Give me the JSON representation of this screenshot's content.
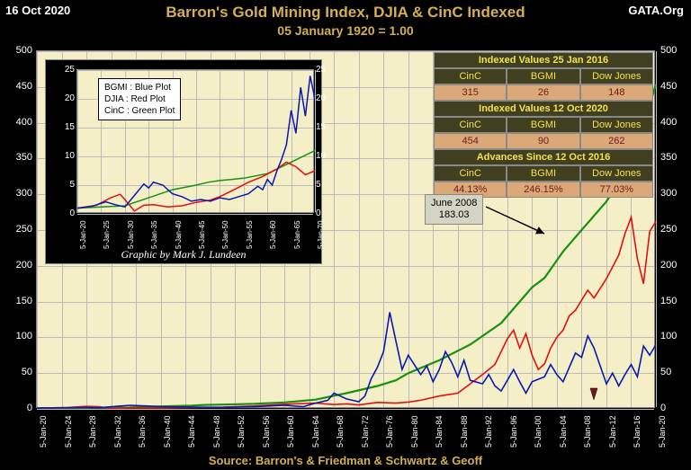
{
  "meta": {
    "date": "16 Oct 2020",
    "org": "GATA.Org",
    "title": "Barron's Gold Mining Index, DJIA & CinC Indexed",
    "subtitle": "05 January 1920 = 1.00",
    "source": "Source: Barron's & Friedman & Schwartz & Geoff",
    "credit": "Graphic by Mark J. Lundeen"
  },
  "main_chart": {
    "type": "line",
    "bg": "#f5efc8",
    "ylim": [
      0,
      500
    ],
    "yticks": [
      0,
      50,
      100,
      150,
      200,
      250,
      300,
      350,
      400,
      450,
      500
    ],
    "xticks": [
      "5-Jan-20",
      "5-Jan-24",
      "5-Jan-28",
      "5-Jan-32",
      "5-Jan-36",
      "5-Jan-40",
      "5-Jan-44",
      "5-Jan-48",
      "5-Jan-52",
      "5-Jan-56",
      "5-Jan-60",
      "5-Jan-64",
      "5-Jan-68",
      "5-Jan-72",
      "5-Jan-76",
      "5-Jan-80",
      "5-Jan-84",
      "5-Jan-88",
      "5-Jan-92",
      "5-Jan-96",
      "5-Jan-00",
      "5-Jan-04",
      "5-Jan-08",
      "5-Jan-12",
      "5-Jan-16",
      "5-Jan-20"
    ],
    "series": {
      "cinc": {
        "color": "#1a9010",
        "width": 2.2
      },
      "djia": {
        "color": "#e01010",
        "width": 1.6
      },
      "bgmi": {
        "color": "#0818b0",
        "width": 1.6
      }
    },
    "cinc_data": [
      [
        0,
        1
      ],
      [
        5,
        1.3
      ],
      [
        10,
        1.5
      ],
      [
        15,
        2
      ],
      [
        20,
        3.5
      ],
      [
        25,
        4.5
      ],
      [
        27,
        5.5
      ],
      [
        30,
        6
      ],
      [
        35,
        7
      ],
      [
        40,
        9
      ],
      [
        45,
        13
      ],
      [
        50,
        22
      ],
      [
        55,
        32
      ],
      [
        58,
        40
      ],
      [
        60,
        50
      ],
      [
        65,
        68
      ],
      [
        70,
        90
      ],
      [
        75,
        120
      ],
      [
        78,
        150
      ],
      [
        80,
        170
      ],
      [
        82,
        183
      ],
      [
        85,
        220
      ],
      [
        88,
        250
      ],
      [
        92,
        290
      ],
      [
        95,
        330
      ],
      [
        98,
        395
      ],
      [
        100,
        454
      ]
    ],
    "djia_data": [
      [
        0,
        1
      ],
      [
        5,
        2
      ],
      [
        8,
        3.5
      ],
      [
        10,
        3
      ],
      [
        12,
        0.5
      ],
      [
        15,
        1.5
      ],
      [
        18,
        1.3
      ],
      [
        20,
        1.2
      ],
      [
        25,
        2
      ],
      [
        30,
        2.5
      ],
      [
        35,
        4
      ],
      [
        40,
        6.5
      ],
      [
        45,
        8
      ],
      [
        48,
        6
      ],
      [
        50,
        7
      ],
      [
        52,
        5.5
      ],
      [
        55,
        9
      ],
      [
        58,
        8
      ],
      [
        60,
        9.5
      ],
      [
        62,
        12
      ],
      [
        65,
        18
      ],
      [
        68,
        22
      ],
      [
        70,
        35
      ],
      [
        72,
        48
      ],
      [
        74,
        62
      ],
      [
        76,
        98
      ],
      [
        77,
        110
      ],
      [
        78,
        85
      ],
      [
        79,
        105
      ],
      [
        80,
        75
      ],
      [
        81,
        55
      ],
      [
        82,
        63
      ],
      [
        83,
        85
      ],
      [
        84,
        100
      ],
      [
        85,
        110
      ],
      [
        86,
        130
      ],
      [
        87,
        138
      ],
      [
        89,
        166
      ],
      [
        90,
        155
      ],
      [
        92,
        182
      ],
      [
        94,
        215
      ],
      [
        95,
        245
      ],
      [
        96,
        268
      ],
      [
        97,
        210
      ],
      [
        98,
        175
      ],
      [
        99,
        248
      ],
      [
        100,
        262
      ]
    ],
    "bgmi_data": [
      [
        0,
        1
      ],
      [
        5,
        1.5
      ],
      [
        8,
        2
      ],
      [
        10,
        1.5
      ],
      [
        12,
        3
      ],
      [
        15,
        5
      ],
      [
        18,
        4
      ],
      [
        20,
        3
      ],
      [
        25,
        2.5
      ],
      [
        30,
        2
      ],
      [
        35,
        3
      ],
      [
        40,
        5
      ],
      [
        43,
        3
      ],
      [
        45,
        8
      ],
      [
        47,
        12
      ],
      [
        48,
        22
      ],
      [
        49,
        18
      ],
      [
        50,
        14
      ],
      [
        52,
        10
      ],
      [
        53,
        18
      ],
      [
        54,
        42
      ],
      [
        55,
        58
      ],
      [
        56,
        80
      ],
      [
        57,
        135
      ],
      [
        58,
        95
      ],
      [
        59,
        55
      ],
      [
        60,
        75
      ],
      [
        62,
        48
      ],
      [
        63,
        60
      ],
      [
        64,
        38
      ],
      [
        65,
        55
      ],
      [
        66,
        80
      ],
      [
        67,
        65
      ],
      [
        68,
        45
      ],
      [
        69,
        68
      ],
      [
        70,
        40
      ],
      [
        72,
        35
      ],
      [
        73,
        48
      ],
      [
        74,
        32
      ],
      [
        75,
        25
      ],
      [
        76,
        40
      ],
      [
        77,
        55
      ],
      [
        78,
        38
      ],
      [
        79,
        22
      ],
      [
        80,
        38
      ],
      [
        82,
        45
      ],
      [
        83,
        62
      ],
      [
        84,
        48
      ],
      [
        85,
        38
      ],
      [
        86,
        58
      ],
      [
        87,
        78
      ],
      [
        88,
        72
      ],
      [
        89,
        102
      ],
      [
        90,
        85
      ],
      [
        91,
        60
      ],
      [
        92,
        35
      ],
      [
        93,
        50
      ],
      [
        94,
        32
      ],
      [
        95,
        48
      ],
      [
        96,
        62
      ],
      [
        97,
        45
      ],
      [
        98,
        88
      ],
      [
        99,
        75
      ],
      [
        100,
        90
      ]
    ]
  },
  "inset_chart": {
    "type": "line",
    "bg": "#f5efc8",
    "ylim": [
      0,
      25
    ],
    "yticks_left": [
      0,
      5,
      10,
      15,
      20,
      25
    ],
    "yticks_right": [
      0,
      5,
      10,
      15,
      20,
      25
    ],
    "xticks": [
      "5-Jan-20",
      "5-Jan-25",
      "5-Jan-30",
      "5-Jan-35",
      "5-Jan-40",
      "5-Jan-45",
      "5-Jan-50",
      "5-Jan-55",
      "5-Jan-60",
      "5-Jan-65",
      "5-Jan-70"
    ],
    "legend": {
      "bgmi": "BGMI  : Blue Plot",
      "djia": "DJIA   : Red Plot",
      "cinc": "CinC   : Green Plot"
    },
    "cinc_data": [
      [
        0,
        1
      ],
      [
        10,
        1.2
      ],
      [
        20,
        1.4
      ],
      [
        30,
        2.8
      ],
      [
        40,
        4.2
      ],
      [
        50,
        5
      ],
      [
        55,
        5.5
      ],
      [
        60,
        5.8
      ],
      [
        70,
        6.2
      ],
      [
        80,
        7
      ],
      [
        90,
        9
      ],
      [
        100,
        11
      ]
    ],
    "djia_data": [
      [
        0,
        1
      ],
      [
        8,
        1.5
      ],
      [
        14,
        2.8
      ],
      [
        18,
        3.4
      ],
      [
        20,
        2.5
      ],
      [
        24,
        0.5
      ],
      [
        28,
        1.5
      ],
      [
        32,
        1.6
      ],
      [
        38,
        1.2
      ],
      [
        44,
        1.4
      ],
      [
        50,
        2
      ],
      [
        56,
        2.4
      ],
      [
        60,
        3
      ],
      [
        66,
        4.2
      ],
      [
        72,
        5.5
      ],
      [
        78,
        6.5
      ],
      [
        84,
        7.8
      ],
      [
        88,
        9
      ],
      [
        92,
        8.2
      ],
      [
        96,
        6.8
      ],
      [
        100,
        7.5
      ]
    ],
    "bgmi_data": [
      [
        0,
        1
      ],
      [
        6,
        1.3
      ],
      [
        12,
        2.1
      ],
      [
        16,
        1.6
      ],
      [
        20,
        1.2
      ],
      [
        24,
        3.2
      ],
      [
        28,
        5.2
      ],
      [
        30,
        4.5
      ],
      [
        32,
        5.5
      ],
      [
        36,
        5
      ],
      [
        40,
        3.5
      ],
      [
        44,
        3
      ],
      [
        48,
        2.2
      ],
      [
        52,
        2.5
      ],
      [
        56,
        2.2
      ],
      [
        60,
        2.8
      ],
      [
        64,
        2.5
      ],
      [
        68,
        3
      ],
      [
        72,
        3.5
      ],
      [
        76,
        4.8
      ],
      [
        78,
        4.2
      ],
      [
        80,
        6
      ],
      [
        82,
        5
      ],
      [
        84,
        7.5
      ],
      [
        86,
        9.5
      ],
      [
        88,
        12
      ],
      [
        90,
        18
      ],
      [
        92,
        14
      ],
      [
        94,
        22
      ],
      [
        96,
        17
      ],
      [
        98,
        24
      ],
      [
        100,
        20
      ]
    ]
  },
  "tables": [
    {
      "header": "Indexed Values 25 Jan 2016",
      "cols": [
        "CinC",
        "BGMI",
        "Dow Jones"
      ],
      "vals": [
        "315",
        "26",
        "148"
      ]
    },
    {
      "header": "Indexed Values 12 Oct 2020",
      "cols": [
        "CinC",
        "BGMI",
        "Dow Jones"
      ],
      "vals": [
        "454",
        "90",
        "262"
      ]
    },
    {
      "header": "Advances Since 12 Oct 2016",
      "cols": [
        "CinC",
        "BGMI",
        "Dow Jones"
      ],
      "vals": [
        "44.13%",
        "246.15%",
        "77.03%"
      ]
    }
  ],
  "annotation": {
    "line1": "June 2008",
    "line2": "183.03"
  },
  "colors": {
    "bg": "#000000",
    "plot_bg": "#f5efc8",
    "title": "#d4b050",
    "axis_text": "#ffffff",
    "grid": "#bbbbbb",
    "table_hdr_bg": "#404020",
    "table_hdr_fg": "#f5e050",
    "table_val_bg": "#dba878",
    "table_val_fg": "#701818"
  }
}
